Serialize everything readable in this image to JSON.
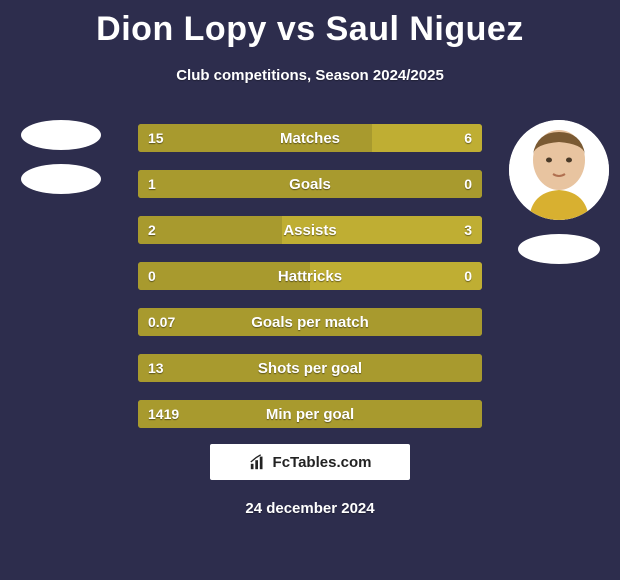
{
  "title": {
    "player1": "Dion Lopy",
    "vs": "vs",
    "player2": "Saul Niguez"
  },
  "subtitle": "Club competitions, Season 2024/2025",
  "colors": {
    "background": "#2d2d4d",
    "bar_left": "#a89a2e",
    "bar_right": "#a89a2e",
    "bar_neutral": "#a89a2e",
    "bar_track": "#a89a2e",
    "text": "#ffffff"
  },
  "bar_style": {
    "height": 28,
    "gap": 18,
    "font_size_label": 15,
    "font_size_value": 14,
    "border_radius": 3
  },
  "stats": [
    {
      "label": "Matches",
      "left_text": "15",
      "right_text": "6",
      "left_pct": 68,
      "right_pct": 32,
      "left_color": "#a89a2e",
      "right_color": "#bfae33"
    },
    {
      "label": "Goals",
      "left_text": "1",
      "right_text": "0",
      "left_pct": 100,
      "right_pct": 0,
      "left_color": "#a89a2e",
      "right_color": "#bfae33"
    },
    {
      "label": "Assists",
      "left_text": "2",
      "right_text": "3",
      "left_pct": 42,
      "right_pct": 58,
      "left_color": "#a89a2e",
      "right_color": "#bfae33"
    },
    {
      "label": "Hattricks",
      "left_text": "0",
      "right_text": "0",
      "left_pct": 50,
      "right_pct": 50,
      "left_color": "#a89a2e",
      "right_color": "#bfae33"
    },
    {
      "label": "Goals per match",
      "left_text": "0.07",
      "right_text": "",
      "left_pct": 100,
      "right_pct": 0,
      "left_color": "#a89a2e",
      "right_color": "#bfae33"
    },
    {
      "label": "Shots per goal",
      "left_text": "13",
      "right_text": "",
      "left_pct": 100,
      "right_pct": 0,
      "left_color": "#a89a2e",
      "right_color": "#bfae33"
    },
    {
      "label": "Min per goal",
      "left_text": "1419",
      "right_text": "",
      "left_pct": 100,
      "right_pct": 0,
      "left_color": "#a89a2e",
      "right_color": "#bfae33"
    }
  ],
  "footer": {
    "site": "FcTables.com",
    "date": "24 december 2024"
  },
  "players": {
    "left": {
      "has_photo": false
    },
    "right": {
      "has_photo": true
    }
  }
}
